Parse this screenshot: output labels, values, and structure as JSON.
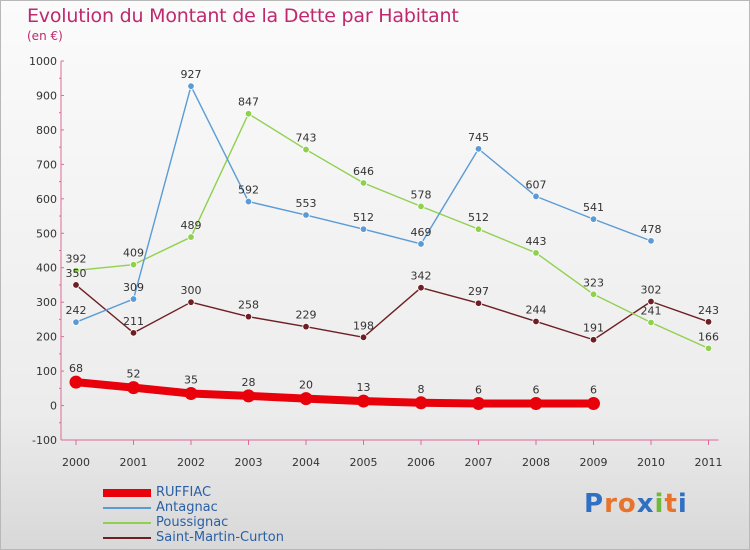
{
  "title": "Evolution du Montant de la Dette par Habitant",
  "unit_label": "(en €)",
  "logo": {
    "text": "Proxiti",
    "colors": [
      "#2f6fc4",
      "#e8732c",
      "#e8732c",
      "#2f6fc4",
      "#6fb83a",
      "#e8732c",
      "#2f6fc4"
    ]
  },
  "chart_data": {
    "type": "line",
    "title": "Evolution du Montant de la Dette par Habitant",
    "ylabel": "(en €)",
    "xlabel": "",
    "x": [
      "2000",
      "2001",
      "2002",
      "2003",
      "2004",
      "2005",
      "2006",
      "2007",
      "2008",
      "2009",
      "2010",
      "2011"
    ],
    "ylim": [
      -100,
      1000
    ],
    "yticks": [
      "-100",
      "0",
      "100",
      "200",
      "300",
      "400",
      "500",
      "600",
      "700",
      "800",
      "900",
      "1000"
    ],
    "grid": false,
    "legend_position": "bottom-left",
    "series": [
      {
        "name": "RUFFIAC",
        "color": "#e8000b",
        "values": [
          68,
          52,
          35,
          28,
          20,
          13,
          8,
          6,
          6,
          6,
          null,
          null
        ]
      },
      {
        "name": "Antagnac",
        "color": "#5b9bd5",
        "values": [
          242,
          309,
          927,
          592,
          553,
          512,
          469,
          745,
          607,
          541,
          478,
          null
        ]
      },
      {
        "name": "Poussignac",
        "color": "#8fd14f",
        "values": [
          392,
          409,
          489,
          847,
          743,
          646,
          578,
          512,
          443,
          323,
          241,
          166
        ]
      },
      {
        "name": "Saint-Martin-Curton",
        "color": "#6e1f24",
        "values": [
          350,
          211,
          300,
          258,
          229,
          198,
          342,
          297,
          244,
          191,
          302,
          243
        ]
      }
    ]
  }
}
